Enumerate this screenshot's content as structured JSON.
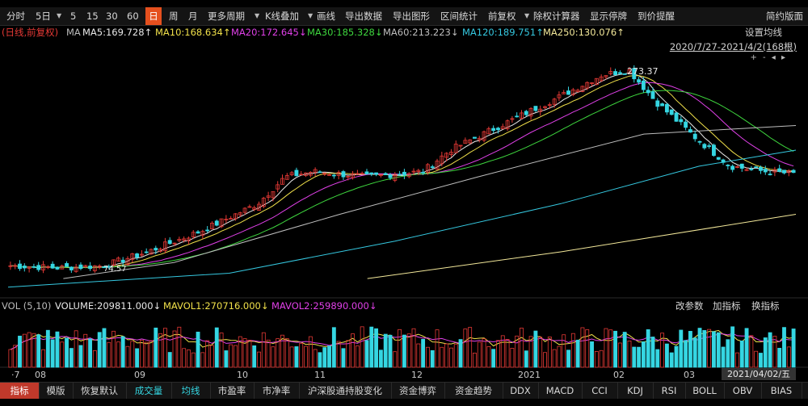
{
  "toolbar": {
    "items": [
      {
        "label": "分时",
        "x": 8
      },
      {
        "label": "5日",
        "x": 44
      },
      {
        "label": "▼",
        "x": 70,
        "tri": true
      },
      {
        "label": "5",
        "x": 87
      },
      {
        "label": "15",
        "x": 107
      },
      {
        "label": "30",
        "x": 131
      },
      {
        "label": "60",
        "x": 157
      },
      {
        "label": "日",
        "x": 183,
        "active": true
      },
      {
        "label": "周",
        "x": 209
      },
      {
        "label": "月",
        "x": 233
      },
      {
        "label": "更多周期",
        "x": 257
      },
      {
        "label": "▼",
        "x": 315,
        "tri": true
      },
      {
        "label": "K线叠加",
        "x": 328
      },
      {
        "label": "▼",
        "x": 381,
        "tri": true
      },
      {
        "label": "画线",
        "x": 392
      },
      {
        "label": "导出数据",
        "x": 427
      },
      {
        "label": "导出图形",
        "x": 486
      },
      {
        "label": "区间统计",
        "x": 545
      },
      {
        "label": "前复权",
        "x": 604
      },
      {
        "label": "▼",
        "x": 649,
        "tri": true
      },
      {
        "label": "除权计算器",
        "x": 660
      },
      {
        "label": "显示停牌",
        "x": 730
      },
      {
        "label": "到价提醒",
        "x": 789
      },
      {
        "label": "简约版面",
        "x": 948
      }
    ]
  },
  "ma_legend": [
    {
      "text": "(日线,前复权)",
      "color": "#e53935",
      "x": 2
    },
    {
      "text": "MA",
      "color": "#bbbbbb",
      "x": 82
    },
    {
      "text": "MA5:169.728↑",
      "color": "#e8e8e8",
      "x": 102
    },
    {
      "text": "MA10:168.634↑",
      "color": "#f0e04a",
      "x": 192
    },
    {
      "text": "MA20:172.645↓",
      "color": "#e040e8",
      "x": 286
    },
    {
      "text": "MA30:185.328↓",
      "color": "#3ed63e",
      "x": 380
    },
    {
      "text": "MA60:213.223↓",
      "color": "#bdbdbd",
      "x": 474
    },
    {
      "text": "MA120:189.751↑",
      "color": "#35c8e0",
      "x": 572
    },
    {
      "text": "MA250:130.076↑",
      "color": "#f3e89a",
      "x": 672
    }
  ],
  "setting_ma": "设置均线",
  "date_range": "2020/7/27-2021/4/2(168根)",
  "ctrl_icons": "+ - ◂ ▸",
  "high_label": "273.37",
  "low_label": "74.57",
  "vol_legend": [
    {
      "text": "VOL (5,10)",
      "color": "#bbbbbb",
      "x": 2
    },
    {
      "text": "VOLUME:209811.000↓",
      "color": "#e8e8e8",
      "x": 68
    },
    {
      "text": "MAVOL1:270716.000↓",
      "color": "#f0e04a",
      "x": 202
    },
    {
      "text": "MAVOL2:259890.000↓",
      "color": "#e040e8",
      "x": 336
    }
  ],
  "vol_buttons": [
    {
      "label": "改参数",
      "x": 836
    },
    {
      "label": "加指标",
      "x": 882
    },
    {
      "label": "换指标",
      "x": 930
    }
  ],
  "x_axis": [
    {
      "label": "·7",
      "x": 14
    },
    {
      "label": "08",
      "x": 43
    },
    {
      "label": "09",
      "x": 166
    },
    {
      "label": "10",
      "x": 293
    },
    {
      "label": "11",
      "x": 389
    },
    {
      "label": "12",
      "x": 509
    },
    {
      "label": "2021",
      "x": 641
    },
    {
      "label": "02",
      "x": 759
    },
    {
      "label": "03",
      "x": 846
    }
  ],
  "current_date": "2021/04/02/五",
  "bottom_tabs": [
    {
      "label": "指标",
      "x": 0,
      "w": 48,
      "active": true
    },
    {
      "label": "模版",
      "x": 48,
      "w": 42
    },
    {
      "label": "恢复默认",
      "x": 90,
      "w": 66
    },
    {
      "label": "成交量",
      "x": 156,
      "w": 56,
      "cyan": true
    },
    {
      "label": "均线",
      "x": 212,
      "w": 48,
      "cyan": true
    },
    {
      "label": "市盈率",
      "x": 260,
      "w": 54
    },
    {
      "label": "市净率",
      "x": 314,
      "w": 56
    },
    {
      "label": "沪深股通持股变化",
      "x": 370,
      "w": 114
    },
    {
      "label": "资金博弈",
      "x": 484,
      "w": 66
    },
    {
      "label": "资金趋势",
      "x": 550,
      "w": 72
    },
    {
      "label": "DDX",
      "x": 622,
      "w": 44
    },
    {
      "label": "MACD",
      "x": 666,
      "w": 54
    },
    {
      "label": "CCI",
      "x": 720,
      "w": 44
    },
    {
      "label": "KDJ",
      "x": 764,
      "w": 44
    },
    {
      "label": "RSI",
      "x": 808,
      "w": 40
    },
    {
      "label": "BOLL",
      "x": 848,
      "w": 48
    },
    {
      "label": "OBV",
      "x": 896,
      "w": 46
    },
    {
      "label": "BIAS",
      "x": 942,
      "w": 50
    }
  ],
  "colors": {
    "up": "#e53935",
    "down": "#35d6e2",
    "bg": "#000000"
  },
  "chart_data": {
    "type": "candlestick",
    "bars": 168,
    "period": "2020/7/27-2021/4/2",
    "high": 273.37,
    "low": 74.57,
    "price_ylim": [
      55,
      285
    ],
    "close_trend": [
      [
        0,
        82
      ],
      [
        18,
        80
      ],
      [
        34,
        82
      ],
      [
        50,
        95
      ],
      [
        70,
        115
      ],
      [
        90,
        140
      ],
      [
        100,
        165
      ],
      [
        110,
        170
      ],
      [
        130,
        165
      ],
      [
        150,
        170
      ],
      [
        160,
        190
      ],
      [
        180,
        215
      ],
      [
        200,
        240
      ],
      [
        215,
        260
      ],
      [
        225,
        265
      ],
      [
        235,
        235
      ],
      [
        250,
        200
      ],
      [
        262,
        175
      ],
      [
        275,
        170
      ],
      [
        285,
        168
      ]
    ],
    "ma_lines": {
      "MA5": [
        [
          0,
          82
        ],
        [
          18,
          80
        ],
        [
          34,
          82
        ],
        [
          50,
          95
        ],
        [
          70,
          115
        ],
        [
          90,
          140
        ],
        [
          100,
          165
        ],
        [
          110,
          170
        ],
        [
          130,
          165
        ],
        [
          150,
          170
        ],
        [
          160,
          190
        ],
        [
          180,
          215
        ],
        [
          200,
          240
        ],
        [
          215,
          260
        ],
        [
          225,
          265
        ],
        [
          235,
          235
        ],
        [
          250,
          200
        ],
        [
          262,
          175
        ],
        [
          275,
          170
        ],
        [
          285,
          170
        ]
      ],
      "MA60": [
        [
          20,
          70
        ],
        [
          60,
          85
        ],
        [
          120,
          130
        ],
        [
          170,
          165
        ],
        [
          230,
          205
        ],
        [
          285,
          213
        ]
      ],
      "MA120": [
        [
          0,
          62
        ],
        [
          80,
          75
        ],
        [
          140,
          105
        ],
        [
          200,
          140
        ],
        [
          250,
          175
        ],
        [
          285,
          190
        ]
      ],
      "MA250": [
        [
          130,
          70
        ],
        [
          200,
          95
        ],
        [
          285,
          130
        ]
      ]
    },
    "volume_ylim": [
      0,
      450000
    ],
    "volume_last": 209811,
    "mavol1": 270716,
    "mavol2": 259890
  }
}
